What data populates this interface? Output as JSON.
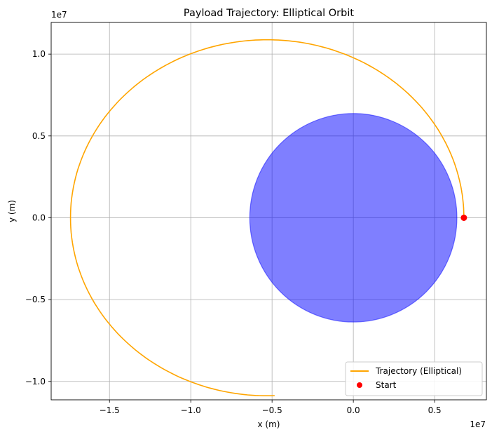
{
  "chart_data": {
    "type": "line",
    "title": "Payload Trajectory: Elliptical Orbit",
    "xlabel": "x (m)",
    "ylabel": "y (m)",
    "x_exponent_label": "1e7",
    "y_exponent_label": "1e7",
    "xlim": [
      -1.8588,
      0.8185
    ],
    "ylim": [
      -1.1125,
      1.1935
    ],
    "xticks": [
      -1.5,
      -1.0,
      -0.5,
      0.0,
      0.5
    ],
    "xtick_labels": [
      "−1.5",
      "−1.0",
      "−0.5",
      "0.0",
      "0.5"
    ],
    "yticks": [
      -1.0,
      -0.5,
      0.0,
      0.5,
      1.0
    ],
    "ytick_labels": [
      "−1.0",
      "−0.5",
      "0.0",
      "0.5",
      "1.0"
    ],
    "grid": true,
    "legend_position": "bottom-right",
    "planet": {
      "center": [
        0.0,
        0.0
      ],
      "radius": 0.6371,
      "color": "#0000ff",
      "alpha": 0.5
    },
    "series": [
      {
        "name": "Trajectory (Elliptical)",
        "kind": "line",
        "color": "#ffa500",
        "orbit": {
          "semi_major_axis": 1.21,
          "eccentricity": 0.438,
          "focus_x": 0.0,
          "pericenter_x": 0.68,
          "true_anomaly_start_deg": 0,
          "true_anomaly_end_deg": 246
        },
        "note_units": "values in units of 1e7 m"
      },
      {
        "name": "Start",
        "kind": "point",
        "color": "#ff0000",
        "x": [
          0.68
        ],
        "y": [
          0.0
        ]
      }
    ]
  }
}
